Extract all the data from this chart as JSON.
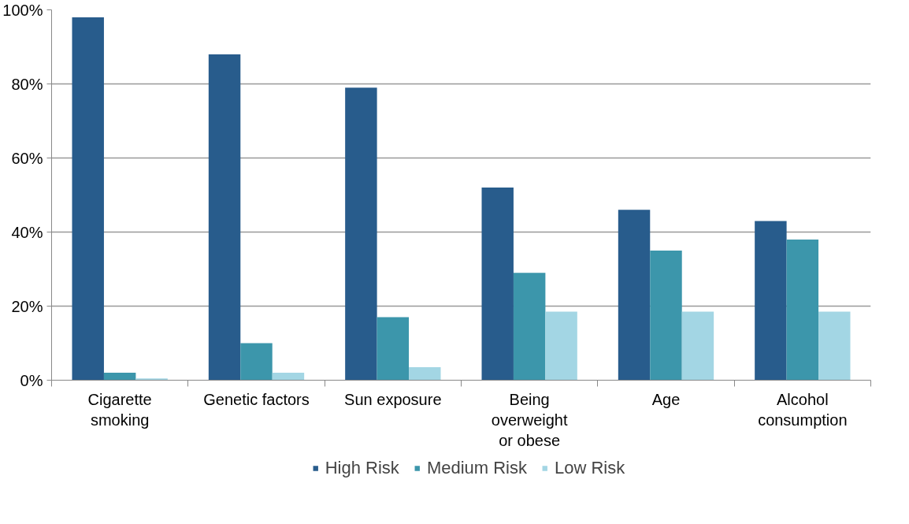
{
  "chart_data": {
    "type": "bar",
    "categories": [
      "Cigarette\nsmoking",
      "Genetic factors",
      "Sun exposure",
      "Being\noverweight\nor obese",
      "Age",
      "Alcohol\nconsumption"
    ],
    "series": [
      {
        "name": "High Risk",
        "color": "#285c8c",
        "values": [
          98,
          88,
          79,
          52,
          46,
          43
        ]
      },
      {
        "name": "Medium Risk",
        "color": "#3c96ab",
        "values": [
          2,
          10,
          17,
          29,
          35,
          38
        ]
      },
      {
        "name": "Low Risk",
        "color": "#a3d6e4",
        "values": [
          0.5,
          2,
          3.5,
          18.5,
          18.5,
          18.5
        ]
      }
    ],
    "ylim": [
      0,
      100
    ],
    "yticks": [
      {
        "value": 0,
        "label": "0%"
      },
      {
        "value": 20,
        "label": "20%"
      },
      {
        "value": 40,
        "label": "40%"
      },
      {
        "value": 60,
        "label": "60%"
      },
      {
        "value": 80,
        "label": "80%"
      },
      {
        "value": 100,
        "label": "100%"
      }
    ],
    "grid": "y",
    "legend": "bottom"
  }
}
